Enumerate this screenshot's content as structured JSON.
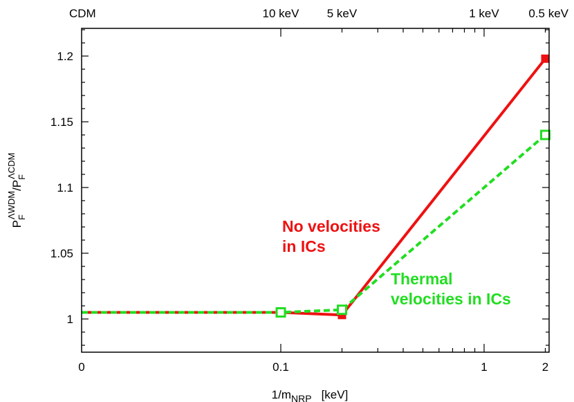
{
  "chart_data": {
    "type": "line",
    "xlabel": {
      "main": "1/m",
      "sub": "NRP",
      "unit": "[keV]"
    },
    "ylabel": {
      "base": "P",
      "sub": "F",
      "sup": "ΛWDM",
      "slash": "/P",
      "sub2": "F",
      "sup2": "ΛCDM"
    },
    "x_scale": "log, with 1/m = 0 (CDM) drawn at the left edge",
    "xlim": [
      0,
      2
    ],
    "ylim": [
      0.97,
      1.22
    ],
    "x_ticks": [
      {
        "value": 0,
        "label": "0"
      },
      {
        "value": 0.1,
        "label": "0.1"
      },
      {
        "value": 1,
        "label": "1"
      },
      {
        "value": 2,
        "label": "2"
      }
    ],
    "y_ticks": [
      {
        "value": 1,
        "label": "1"
      },
      {
        "value": 1.05,
        "label": "1.05"
      },
      {
        "value": 1.1,
        "label": "1.1"
      },
      {
        "value": 1.15,
        "label": "1.15"
      },
      {
        "value": 1.2,
        "label": "1.2"
      }
    ],
    "top_ticks": [
      {
        "value": 0,
        "label": "CDM"
      },
      {
        "value": 0.1,
        "label": "10 keV"
      },
      {
        "value": 0.2,
        "label": "5 keV"
      },
      {
        "value": 1,
        "label": "1 keV"
      },
      {
        "value": 2,
        "label": "0.5 keV"
      }
    ],
    "series": [
      {
        "color": "#ee1111",
        "dash": false,
        "marker": "filled-square",
        "x": [
          0,
          0.1,
          0.2,
          2
        ],
        "y": [
          1.005,
          1.005,
          1.003,
          1.198
        ]
      },
      {
        "color": "#22dd22",
        "dash": true,
        "marker": "open-square",
        "x": [
          0,
          0.1,
          0.2,
          2
        ],
        "y": [
          1.005,
          1.005,
          1.007,
          1.14
        ]
      }
    ],
    "annotations": [
      {
        "lines": [
          "No velocities",
          "in ICs"
        ],
        "color": "#ee1111"
      },
      {
        "lines": [
          "Thermal",
          "velocities in ICs"
        ],
        "color": "#22dd22"
      }
    ],
    "grid": false
  }
}
